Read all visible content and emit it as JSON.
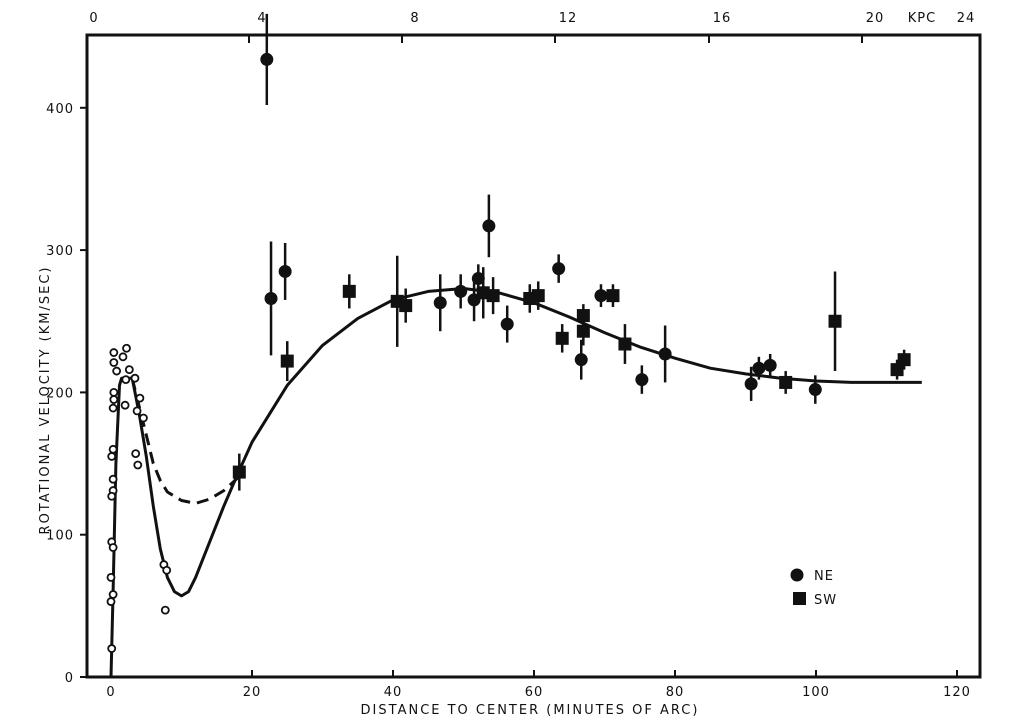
{
  "chart_data": {
    "type": "scatter",
    "title": "",
    "xlabel": "DISTANCE TO CENTER (MINUTES OF ARC)",
    "ylabel": "ROTATIONAL VELOCITY   (KM/SEC)",
    "xlim": [
      -3.5,
      124.7
    ],
    "ylim": [
      0,
      451
    ],
    "x_ticks": [
      0,
      20,
      40,
      60,
      80,
      100,
      120
    ],
    "y_ticks": [
      0,
      100,
      200,
      300,
      400
    ],
    "top_axis": {
      "unit_label": "KPC",
      "ticks": [
        "0",
        "4",
        "8",
        "12",
        "16",
        "20",
        "24"
      ]
    },
    "grid": false,
    "legend": {
      "placement": "bottom-right",
      "entries": [
        {
          "name": "NE",
          "marker": "filled-circle"
        },
        {
          "name": "SW",
          "marker": "filled-square"
        }
      ]
    },
    "series": [
      {
        "name": "NE",
        "marker": "filled-circle",
        "points": [
          [
            22.1,
            434,
            32
          ],
          [
            22.7,
            266,
            40
          ],
          [
            24.7,
            285,
            20
          ],
          [
            46.7,
            263,
            20
          ],
          [
            49.6,
            271,
            12
          ],
          [
            51.5,
            265,
            15
          ],
          [
            52.1,
            280,
            10
          ],
          [
            53.6,
            317,
            22
          ],
          [
            56.2,
            248,
            13
          ],
          [
            63.5,
            287,
            10
          ],
          [
            66.7,
            223,
            14
          ],
          [
            69.5,
            268,
            8
          ],
          [
            75.3,
            209,
            10
          ],
          [
            78.6,
            227,
            20
          ],
          [
            90.8,
            206,
            12
          ],
          [
            91.9,
            217,
            8
          ],
          [
            93.5,
            219,
            8
          ],
          [
            99.9,
            202,
            10
          ]
        ]
      },
      {
        "name": "SW",
        "marker": "filled-square",
        "points": [
          [
            18.2,
            144,
            13
          ],
          [
            25.0,
            222,
            14
          ],
          [
            33.8,
            271,
            12
          ],
          [
            40.6,
            264,
            32
          ],
          [
            41.8,
            261,
            12
          ],
          [
            52.8,
            270,
            18
          ],
          [
            54.2,
            268,
            13
          ],
          [
            59.4,
            266,
            10
          ],
          [
            60.6,
            268,
            10
          ],
          [
            64.0,
            238,
            10
          ],
          [
            67.0,
            243,
            10
          ],
          [
            67.0,
            254,
            8
          ],
          [
            71.2,
            268,
            8
          ],
          [
            72.9,
            234,
            14
          ],
          [
            95.7,
            207,
            8
          ],
          [
            102.7,
            250,
            35
          ],
          [
            111.5,
            216,
            7
          ],
          [
            112.5,
            223,
            7
          ]
        ]
      },
      {
        "name": "inner (open circles)",
        "marker": "open-circle",
        "points": [
          [
            0.4,
            228
          ],
          [
            0.4,
            221
          ],
          [
            0.8,
            215
          ],
          [
            2.2,
            231
          ],
          [
            1.7,
            225
          ],
          [
            2.6,
            216
          ],
          [
            2.1,
            209
          ],
          [
            3.4,
            210
          ],
          [
            2.0,
            191
          ],
          [
            0.4,
            200
          ],
          [
            0.4,
            195
          ],
          [
            0.3,
            189
          ],
          [
            3.7,
            187
          ],
          [
            4.1,
            196
          ],
          [
            4.6,
            182
          ],
          [
            0.3,
            160
          ],
          [
            0.1,
            155
          ],
          [
            3.5,
            157
          ],
          [
            3.8,
            149
          ],
          [
            0.3,
            139
          ],
          [
            0.3,
            131
          ],
          [
            0.1,
            127
          ],
          [
            0.1,
            95
          ],
          [
            0.3,
            91
          ],
          [
            0.0,
            70
          ],
          [
            0.3,
            58
          ],
          [
            0.0,
            53
          ],
          [
            7.5,
            79
          ],
          [
            7.9,
            75
          ],
          [
            7.7,
            47
          ],
          [
            0.1,
            20
          ]
        ]
      }
    ],
    "curves": [
      {
        "name": "rotation curve (solid)",
        "style": "solid",
        "points": [
          [
            0,
            0
          ],
          [
            0.3,
            60
          ],
          [
            0.7,
            150
          ],
          [
            1.2,
            205
          ],
          [
            1.5,
            210
          ],
          [
            3,
            210
          ],
          [
            4,
            185
          ],
          [
            5,
            155
          ],
          [
            6,
            120
          ],
          [
            7,
            90
          ],
          [
            8,
            70
          ],
          [
            9,
            60
          ],
          [
            10,
            57
          ],
          [
            11,
            60
          ],
          [
            12,
            70
          ],
          [
            14,
            95
          ],
          [
            16,
            120
          ],
          [
            18,
            143
          ],
          [
            20,
            165
          ],
          [
            25,
            205
          ],
          [
            30,
            233
          ],
          [
            35,
            252
          ],
          [
            40,
            265
          ],
          [
            45,
            271
          ],
          [
            50,
            273
          ],
          [
            55,
            270
          ],
          [
            60,
            263
          ],
          [
            65,
            253
          ],
          [
            70,
            242
          ],
          [
            75,
            232
          ],
          [
            80,
            224
          ],
          [
            85,
            217
          ],
          [
            90,
            213
          ],
          [
            95,
            210
          ],
          [
            100,
            208
          ],
          [
            105,
            207
          ],
          [
            110,
            207
          ],
          [
            115,
            207
          ]
        ]
      },
      {
        "name": "rotation curve (dashed)",
        "style": "dashed",
        "points": [
          [
            3,
            210
          ],
          [
            4,
            190
          ],
          [
            5,
            170
          ],
          [
            6,
            150
          ],
          [
            7,
            138
          ],
          [
            8,
            130
          ],
          [
            10,
            124
          ],
          [
            12,
            122
          ],
          [
            14,
            125
          ],
          [
            16,
            131
          ],
          [
            18,
            140
          ]
        ]
      }
    ]
  }
}
